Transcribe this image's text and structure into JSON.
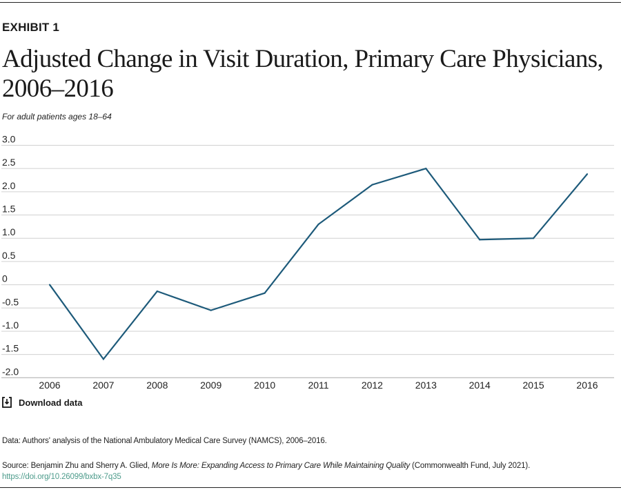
{
  "header": {
    "exhibit": "EXHIBIT 1",
    "title": "Adjusted Change in Visit Duration, Primary Care Physicians, 2006–2016",
    "subtitle": "For adult patients ages 18–64"
  },
  "download": {
    "label": "Download data",
    "icon": "download-icon"
  },
  "footer": {
    "data_note": "Data: Authors' analysis of the National Ambulatory Medical Care Survey (NAMCS), 2006–2016.",
    "source_prefix": "Source: Benjamin Zhu and Sherry A. Glied, ",
    "source_title": "More Is More: Expanding Access to Primary Care While Maintaining Quality",
    "source_suffix": " (Commonwealth Fund, July 2021).",
    "doi": "https://doi.org/10.26099/bxbx-7q35"
  },
  "colors": {
    "line": "#1d5a7a",
    "grid": "#d0d0d0",
    "link": "#4e9c8c"
  },
  "chart_data": {
    "type": "line",
    "title": "Adjusted Change in Visit Duration, Primary Care Physicians, 2006–2016",
    "subtitle": "For adult patients ages 18–64",
    "categories": [
      "2006",
      "2007",
      "2008",
      "2009",
      "2010",
      "2011",
      "2012",
      "2013",
      "2014",
      "2015",
      "2016"
    ],
    "values": [
      0,
      -1.6,
      -0.14,
      -0.55,
      -0.18,
      1.3,
      2.15,
      2.5,
      0.97,
      1.0,
      2.38
    ],
    "ylim": [
      -2.0,
      3.0
    ],
    "yticks": [
      "3.0",
      "2.5",
      "2.0",
      "1.5",
      "1.0",
      "0.5",
      "0",
      "-0.5",
      "-1.0",
      "-1.5",
      "-2.0"
    ],
    "ytick_values": [
      3.0,
      2.5,
      2.0,
      1.5,
      1.0,
      0.5,
      0,
      -0.5,
      -1.0,
      -1.5,
      -2.0
    ],
    "grid": true,
    "legend": "none"
  }
}
